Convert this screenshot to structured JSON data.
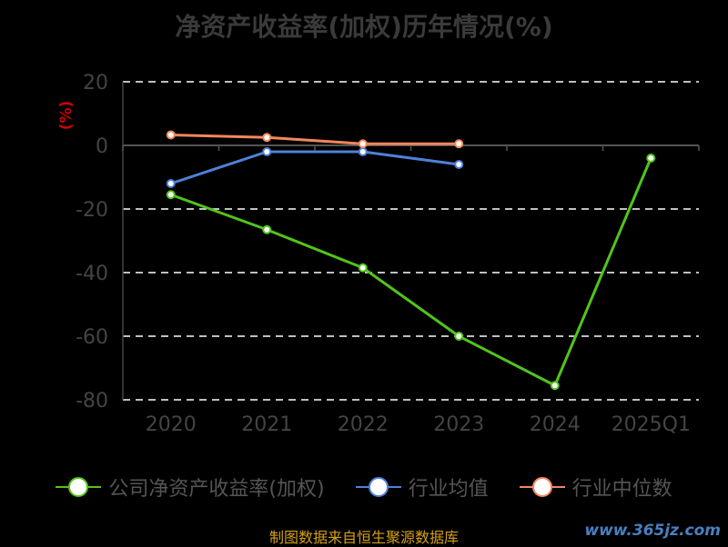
{
  "title": "净资产收益率(加权)历年情况(%)",
  "source": "制图数据来自恒生聚源数据库",
  "watermark": "www.365jz.com",
  "chart_data": {
    "type": "line",
    "title": "净资产收益率(加权)历年情况(%)",
    "ylabel": "(%)",
    "categories": [
      "2020",
      "2021",
      "2022",
      "2023",
      "2024",
      "2025Q1"
    ],
    "ylim": [
      -80,
      20
    ],
    "yticks": [
      20,
      0,
      -20,
      -40,
      -60,
      -80
    ],
    "grid": true,
    "legend_position": "bottom",
    "series": [
      {
        "name": "公司净资产收益率(加权)",
        "color": "#52c41a",
        "values": [
          -15.5,
          -26.5,
          -38.5,
          -60,
          -75.5,
          -4
        ]
      },
      {
        "name": "行业均值",
        "color": "#4f81d9",
        "values": [
          -12,
          -2,
          -2,
          -6,
          null,
          null
        ]
      },
      {
        "name": "行业中位数",
        "color": "#f4875d",
        "values": [
          3.3,
          2.5,
          0.5,
          0.5,
          null,
          null
        ]
      }
    ]
  }
}
